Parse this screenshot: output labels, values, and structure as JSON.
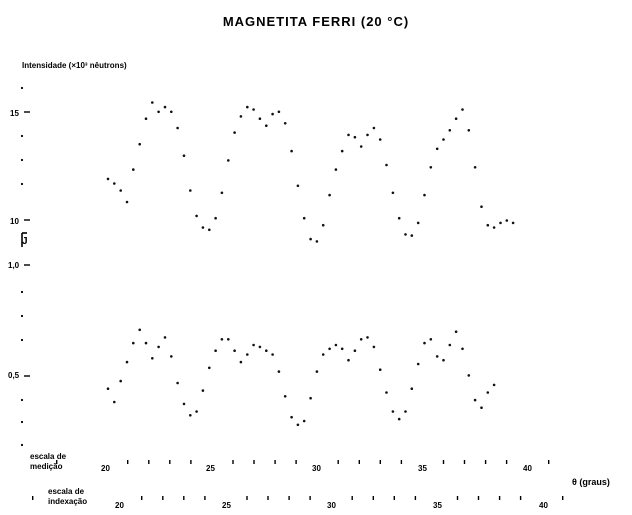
{
  "chart_data": {
    "type": "scatter",
    "title": "MAGNETITA    FERRI    (20 °C)",
    "ylabel": "Intensidade (×10³ nêutrons)",
    "y_marker_label": "J",
    "xlabel": "θ (graus)",
    "y_ticks": [
      "15",
      "10",
      "1,0",
      "0,5"
    ],
    "scale_rows": [
      {
        "label_line1": "escala de",
        "label_line2": "medição",
        "ticks": [
          "20",
          "25",
          "30",
          "35",
          "40"
        ]
      },
      {
        "label_line1": "escala de",
        "label_line2": "indexação",
        "ticks": [
          "20",
          "25",
          "30",
          "35",
          "40"
        ]
      }
    ],
    "x_range": [
      20,
      40.5
    ],
    "series": [
      {
        "panel": "upper",
        "y_range": [
          9.5,
          16.5
        ],
        "points": [
          [
            20.0,
            12.4
          ],
          [
            20.3,
            12.2
          ],
          [
            20.6,
            11.9
          ],
          [
            20.9,
            11.4
          ],
          [
            21.2,
            12.8
          ],
          [
            21.5,
            13.9
          ],
          [
            21.8,
            15.0
          ],
          [
            22.1,
            15.7
          ],
          [
            22.4,
            15.3
          ],
          [
            22.7,
            15.5
          ],
          [
            23.0,
            15.3
          ],
          [
            23.3,
            14.6
          ],
          [
            23.6,
            13.4
          ],
          [
            23.9,
            11.9
          ],
          [
            24.2,
            10.8
          ],
          [
            24.5,
            10.3
          ],
          [
            24.8,
            10.2
          ],
          [
            25.1,
            10.7
          ],
          [
            25.4,
            11.8
          ],
          [
            25.7,
            13.2
          ],
          [
            26.0,
            14.4
          ],
          [
            26.3,
            15.1
          ],
          [
            26.6,
            15.5
          ],
          [
            26.9,
            15.4
          ],
          [
            27.2,
            15.0
          ],
          [
            27.5,
            14.7
          ],
          [
            27.8,
            15.2
          ],
          [
            28.1,
            15.3
          ],
          [
            28.4,
            14.8
          ],
          [
            28.7,
            13.6
          ],
          [
            29.0,
            12.1
          ],
          [
            29.3,
            10.7
          ],
          [
            29.6,
            9.8
          ],
          [
            29.9,
            9.7
          ],
          [
            30.2,
            10.4
          ],
          [
            30.5,
            11.7
          ],
          [
            30.8,
            12.8
          ],
          [
            31.1,
            13.6
          ],
          [
            31.4,
            14.3
          ],
          [
            31.7,
            14.2
          ],
          [
            32.0,
            13.8
          ],
          [
            32.3,
            14.3
          ],
          [
            32.6,
            14.6
          ],
          [
            32.9,
            14.1
          ],
          [
            33.2,
            13.0
          ],
          [
            33.5,
            11.8
          ],
          [
            33.8,
            10.7
          ],
          [
            34.1,
            10.0
          ],
          [
            34.4,
            9.95
          ],
          [
            34.7,
            10.5
          ],
          [
            35.0,
            11.7
          ],
          [
            35.3,
            12.9
          ],
          [
            35.6,
            13.7
          ],
          [
            35.9,
            14.1
          ],
          [
            36.2,
            14.5
          ],
          [
            36.5,
            15.0
          ],
          [
            36.8,
            15.4
          ],
          [
            37.1,
            14.5
          ],
          [
            37.4,
            12.9
          ],
          [
            37.7,
            11.2
          ],
          [
            38.0,
            10.4
          ],
          [
            38.3,
            10.3
          ],
          [
            38.6,
            10.5
          ],
          [
            38.9,
            10.6
          ],
          [
            39.2,
            10.5
          ]
        ]
      },
      {
        "panel": "lower",
        "y_range": [
          0.25,
          1.05
        ],
        "points": [
          [
            20.0,
            0.52
          ],
          [
            20.3,
            0.45
          ],
          [
            20.6,
            0.56
          ],
          [
            20.9,
            0.66
          ],
          [
            21.2,
            0.76
          ],
          [
            21.5,
            0.83
          ],
          [
            21.8,
            0.76
          ],
          [
            22.1,
            0.68
          ],
          [
            22.4,
            0.74
          ],
          [
            22.7,
            0.79
          ],
          [
            23.0,
            0.69
          ],
          [
            23.3,
            0.55
          ],
          [
            23.6,
            0.44
          ],
          [
            23.9,
            0.38
          ],
          [
            24.2,
            0.4
          ],
          [
            24.5,
            0.51
          ],
          [
            24.8,
            0.63
          ],
          [
            25.1,
            0.72
          ],
          [
            25.4,
            0.78
          ],
          [
            25.7,
            0.78
          ],
          [
            26.0,
            0.72
          ],
          [
            26.3,
            0.66
          ],
          [
            26.6,
            0.7
          ],
          [
            26.9,
            0.75
          ],
          [
            27.2,
            0.74
          ],
          [
            27.5,
            0.72
          ],
          [
            27.8,
            0.7
          ],
          [
            28.1,
            0.61
          ],
          [
            28.4,
            0.48
          ],
          [
            28.7,
            0.37
          ],
          [
            29.0,
            0.33
          ],
          [
            29.3,
            0.35
          ],
          [
            29.6,
            0.47
          ],
          [
            29.9,
            0.61
          ],
          [
            30.2,
            0.7
          ],
          [
            30.5,
            0.73
          ],
          [
            30.8,
            0.75
          ],
          [
            31.1,
            0.73
          ],
          [
            31.4,
            0.67
          ],
          [
            31.7,
            0.72
          ],
          [
            32.0,
            0.78
          ],
          [
            32.3,
            0.79
          ],
          [
            32.6,
            0.74
          ],
          [
            32.9,
            0.62
          ],
          [
            33.2,
            0.5
          ],
          [
            33.5,
            0.4
          ],
          [
            33.8,
            0.36
          ],
          [
            34.1,
            0.4
          ],
          [
            34.4,
            0.52
          ],
          [
            34.7,
            0.65
          ],
          [
            35.0,
            0.76
          ],
          [
            35.3,
            0.78
          ],
          [
            35.6,
            0.69
          ],
          [
            35.9,
            0.67
          ],
          [
            36.2,
            0.75
          ],
          [
            36.5,
            0.82
          ],
          [
            36.8,
            0.73
          ],
          [
            37.1,
            0.59
          ],
          [
            37.4,
            0.46
          ],
          [
            37.7,
            0.42
          ],
          [
            38.0,
            0.5
          ],
          [
            38.3,
            0.54
          ]
        ]
      }
    ],
    "grid": false,
    "legend": "none"
  }
}
